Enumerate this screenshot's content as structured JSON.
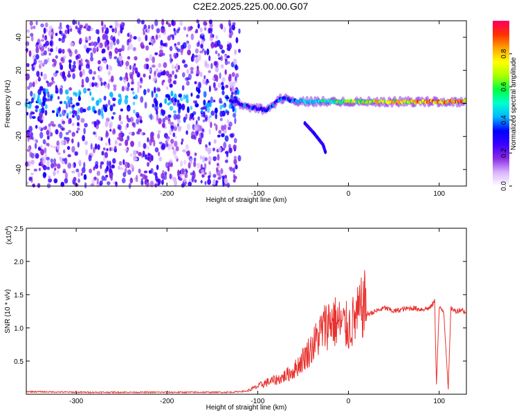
{
  "title": "C2E2.2025.225.00.00.G07",
  "chart_data": [
    {
      "type": "heatmap",
      "xlabel": "Height of straight line (km)",
      "ylabel": "Frequency (Hz)",
      "xlim": [
        -355,
        130
      ],
      "ylim": [
        -50,
        50
      ],
      "xticks": [
        -300,
        -200,
        -100,
        0,
        100
      ],
      "yticks": [
        -40,
        -20,
        0,
        20,
        40
      ],
      "colorbar": {
        "label": "Normalized spectral amplitude",
        "range": [
          0,
          1
        ],
        "ticks": [
          "0.0",
          "0.2",
          "0.4",
          "0.6",
          "0.8"
        ],
        "colors": [
          "#ffffff",
          "#d9b3ff",
          "#8a2be2",
          "#3b00ff",
          "#0000ff",
          "#00b4ff",
          "#00ffd0",
          "#00ff40",
          "#aaff00",
          "#ffff00",
          "#ffa500",
          "#ff3000",
          "#ff0060"
        ]
      },
      "noise_region_x": [
        -355,
        -120
      ],
      "signal_trace": [
        {
          "x": -130,
          "y": 2,
          "amp": 0.35
        },
        {
          "x": -110,
          "y": -2,
          "amp": 0.35
        },
        {
          "x": -90,
          "y": -4,
          "amp": 0.35
        },
        {
          "x": -75,
          "y": 3,
          "amp": 0.4
        },
        {
          "x": -50,
          "y": 1,
          "amp": 0.45
        },
        {
          "x": -25,
          "y": 1,
          "amp": 0.55
        },
        {
          "x": 0,
          "y": 1,
          "amp": 0.65
        },
        {
          "x": 30,
          "y": 1,
          "amp": 0.75
        },
        {
          "x": 60,
          "y": 1,
          "amp": 0.8
        },
        {
          "x": 90,
          "y": 1,
          "amp": 0.85
        },
        {
          "x": 120,
          "y": 1,
          "amp": 0.85
        },
        {
          "x": 130,
          "y": 1,
          "amp": 0.85
        }
      ],
      "branch_trace": [
        {
          "x": -48,
          "y": -12
        },
        {
          "x": -38,
          "y": -18
        },
        {
          "x": -28,
          "y": -25
        },
        {
          "x": -25,
          "y": -30
        }
      ]
    },
    {
      "type": "line",
      "xlabel": "Height of straight line (km)",
      "ylabel": "SNR (10 * v/v)",
      "y_multiplier": "(x10",
      "y_multiplier_exp": "4",
      "y_multiplier_close": ")",
      "xlim": [
        -355,
        130
      ],
      "ylim": [
        0,
        2.5
      ],
      "xticks": [
        -300,
        -200,
        -100,
        0,
        100
      ],
      "yticks": [
        "0.5",
        "1.0",
        "1.5",
        "2.0",
        "2.5"
      ],
      "series": [
        {
          "color": "#e8312e",
          "x": [
            -355,
            -300,
            -200,
            -130,
            -110,
            -100,
            -90,
            -75,
            -60,
            -50,
            -40,
            -30,
            -20,
            -10,
            0,
            10,
            20,
            30,
            40,
            50,
            60,
            70,
            80,
            90,
            95,
            97,
            100,
            105,
            110,
            113,
            118,
            125,
            130
          ],
          "y": [
            0.04,
            0.03,
            0.03,
            0.03,
            0.05,
            0.1,
            0.15,
            0.2,
            0.3,
            0.45,
            0.6,
            0.8,
            0.95,
            0.9,
            0.85,
            1.0,
            1.2,
            1.25,
            1.3,
            1.25,
            1.28,
            1.3,
            1.28,
            1.3,
            1.4,
            0.15,
            1.3,
            1.25,
            0.1,
            1.3,
            1.25,
            1.28,
            1.22
          ]
        }
      ]
    }
  ]
}
